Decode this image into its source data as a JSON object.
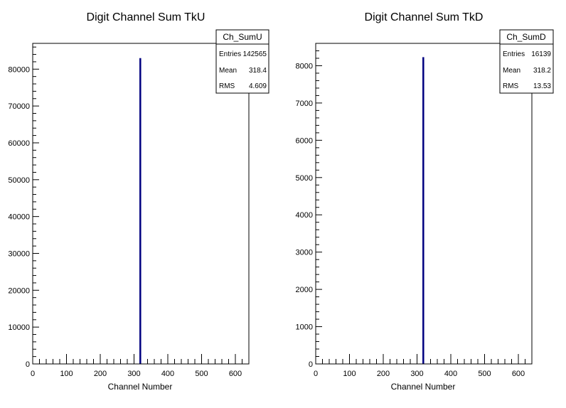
{
  "chart_data": [
    {
      "type": "bar",
      "title": "Digit Channel Sum TkU",
      "xlabel": "Channel Number",
      "ylabel": "",
      "xlim": [
        0,
        640
      ],
      "ylim": [
        0,
        87000
      ],
      "x_ticks": [
        "0",
        "100",
        "200",
        "300",
        "400",
        "500",
        "600"
      ],
      "y_ticks": [
        "0",
        "10000",
        "20000",
        "30000",
        "40000",
        "50000",
        "60000",
        "70000",
        "80000"
      ],
      "series": [
        {
          "x": [
            318
          ],
          "values": [
            83000
          ]
        }
      ],
      "bar_color": "#000080",
      "stats": {
        "name": "Ch_SumU",
        "rows": [
          {
            "label": "Entries",
            "value": "142565"
          },
          {
            "label": "Mean",
            "value": "318.4"
          },
          {
            "label": "RMS",
            "value": "4.609"
          }
        ]
      }
    },
    {
      "type": "bar",
      "title": "Digit Channel Sum TkD",
      "xlabel": "Channel Number",
      "ylabel": "",
      "xlim": [
        0,
        640
      ],
      "ylim": [
        0,
        8600
      ],
      "x_ticks": [
        "0",
        "100",
        "200",
        "300",
        "400",
        "500",
        "600"
      ],
      "y_ticks": [
        "0",
        "1000",
        "2000",
        "3000",
        "4000",
        "5000",
        "6000",
        "7000",
        "8000"
      ],
      "series": [
        {
          "x": [
            318
          ],
          "values": [
            8230
          ]
        }
      ],
      "bar_color": "#000080",
      "stats": {
        "name": "Ch_SumD",
        "rows": [
          {
            "label": "Entries",
            "value": "16139"
          },
          {
            "label": "Mean",
            "value": "318.2"
          },
          {
            "label": "RMS",
            "value": "13.53"
          }
        ]
      }
    }
  ]
}
